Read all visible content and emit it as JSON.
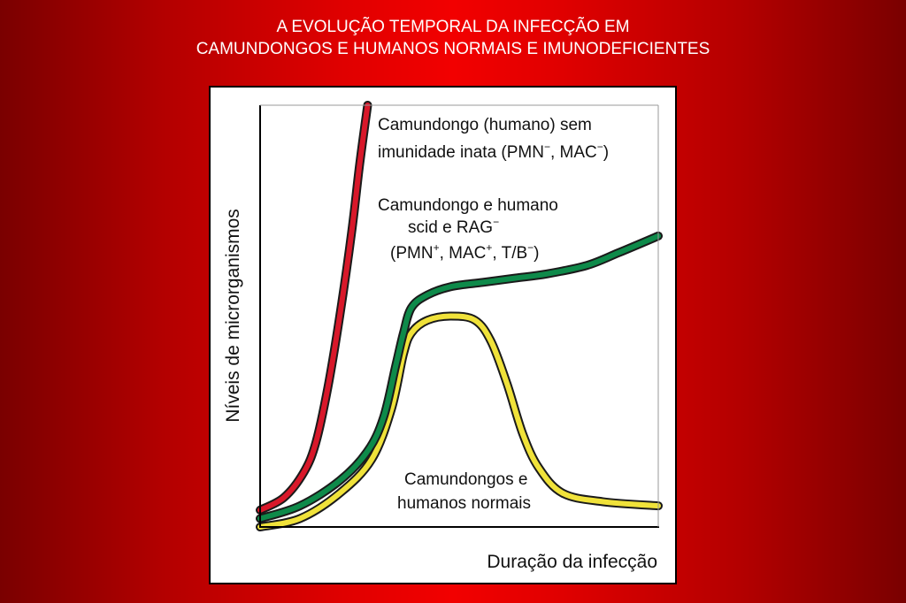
{
  "slide": {
    "title_line1": "A EVOLUÇÃO TEMPORAL DA INFECÇÃO EM",
    "title_line2": "CAMUNDONGOS E HUMANOS NORMAIS E IMUNODEFICIENTES",
    "background_colors": [
      "#7a0000",
      "#f20000"
    ]
  },
  "chart_data": {
    "type": "line",
    "xlabel": "Duração da infecção",
    "ylabel": "Níveis de microrganismos",
    "xlim": [
      0,
      100
    ],
    "ylim": [
      0,
      100
    ],
    "grid": false,
    "axis_ticks": false,
    "series": [
      {
        "label_lines": [
          "Camundongo (humano) sem",
          "imunidade inata (PMN",
          ", MAC",
          ")"
        ],
        "label_line1": "Camundongo (humano) sem",
        "label_line2_parts": [
          "imunidade inata (PMN",
          "−",
          ", MAC",
          "−",
          ")"
        ],
        "color": "#d8182a",
        "points": [
          [
            0,
            4
          ],
          [
            6,
            7
          ],
          [
            11,
            13
          ],
          [
            14,
            20
          ],
          [
            17,
            33
          ],
          [
            20,
            50
          ],
          [
            23,
            70
          ],
          [
            25,
            86
          ],
          [
            27,
            100
          ]
        ]
      },
      {
        "label_line1": "Camundongo e humano",
        "label_line2_parts": [
          "scid e RAG",
          "−"
        ],
        "label_line3_parts": [
          "(PMN",
          "+",
          ", MAC",
          "+",
          ", T/B",
          "−",
          ")"
        ],
        "color": "#0e8a4a",
        "points": [
          [
            0,
            2
          ],
          [
            10,
            5
          ],
          [
            20,
            11
          ],
          [
            27,
            18
          ],
          [
            31,
            26
          ],
          [
            34,
            38
          ],
          [
            36,
            46
          ],
          [
            38,
            52
          ],
          [
            42,
            55
          ],
          [
            48,
            57
          ],
          [
            56,
            58
          ],
          [
            64,
            59
          ],
          [
            72,
            60
          ],
          [
            82,
            62
          ],
          [
            90,
            65
          ],
          [
            100,
            69
          ]
        ]
      },
      {
        "label_line1": "Camundongos e",
        "label_line2": "humanos normais",
        "color": "#f0e23a",
        "points": [
          [
            0,
            0
          ],
          [
            10,
            2
          ],
          [
            20,
            8
          ],
          [
            28,
            16
          ],
          [
            33,
            28
          ],
          [
            36,
            41
          ],
          [
            38,
            46
          ],
          [
            42,
            49
          ],
          [
            48,
            50
          ],
          [
            54,
            49
          ],
          [
            58,
            44
          ],
          [
            62,
            34
          ],
          [
            66,
            22
          ],
          [
            70,
            14
          ],
          [
            76,
            8
          ],
          [
            86,
            6
          ],
          [
            100,
            5
          ]
        ]
      }
    ]
  }
}
